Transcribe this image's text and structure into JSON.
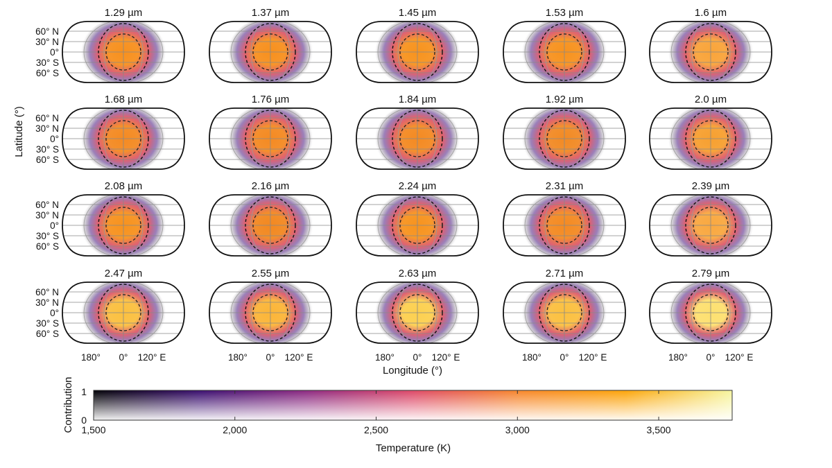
{
  "chart_data": {
    "type": "heatmap",
    "panel_titles": [
      "1.29 µm",
      "1.37 µm",
      "1.45 µm",
      "1.53 µm",
      "1.6 µm",
      "1.68 µm",
      "1.76 µm",
      "1.84 µm",
      "1.92 µm",
      "2.0 µm",
      "2.08 µm",
      "2.16 µm",
      "2.24 µm",
      "2.31 µm",
      "2.39 µm",
      "2.47 µm",
      "2.55 µm",
      "2.63 µm",
      "2.71 µm",
      "2.79 µm"
    ],
    "panel_center_colors": [
      "#f7901e",
      "#f7901e",
      "#f7931e",
      "#f7921e",
      "#f9a43a",
      "#f48a22",
      "#f48a22",
      "#f48a22",
      "#f28a24",
      "#f7a030",
      "#f7921e",
      "#f28820",
      "#f7931e",
      "#f48a22",
      "#f9a840",
      "#fbc040",
      "#fbb538",
      "#fcd050",
      "#fbc040",
      "#fde070"
    ],
    "ylabel": "Latitude (°)",
    "xlabel": "Longitude (°)",
    "lat_ticks": [
      "60° N",
      "30° N",
      "0°",
      "30° S",
      "60° S"
    ],
    "lon_ticks": [
      "180°",
      "0°",
      "120° E"
    ],
    "colorbar": {
      "xlabel": "Temperature (K)",
      "ylabel": "Contribution",
      "x_ticks": [
        "1,500",
        "2,000",
        "2,500",
        "3,000",
        "3,500"
      ],
      "x_tick_values": [
        1500,
        2000,
        2500,
        3000,
        3500
      ],
      "x_range": [
        1500,
        3760
      ],
      "y_ticks": [
        "0",
        "1"
      ],
      "colormap": [
        "#000004",
        "#3b0f70",
        "#8c2981",
        "#de4968",
        "#f7862a",
        "#fca50a",
        "#f6f5a0"
      ]
    }
  }
}
